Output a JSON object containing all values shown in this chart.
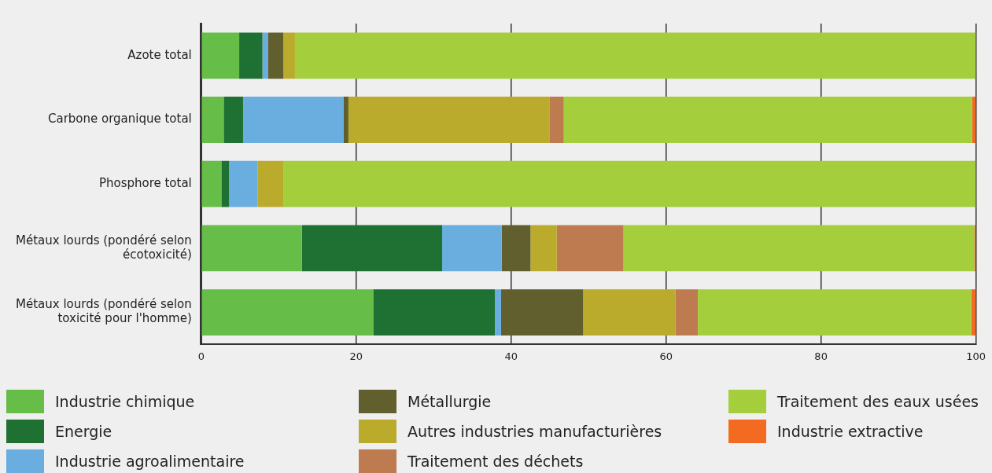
{
  "chart_data": {
    "type": "bar",
    "orientation": "horizontal",
    "stacked": true,
    "categories": [
      "Azote total",
      "Carbone organique total",
      "Phosphore total",
      "Métaux lourds (pondéré selon écotoxicité)",
      "Métaux lourds (pondéré selon toxicité pour l'homme)"
    ],
    "series": [
      {
        "name": "Industrie chimique",
        "color": "#66bd47",
        "values": [
          4.9,
          2.9,
          2.6,
          13.0,
          22.2
        ]
      },
      {
        "name": "Energie",
        "color": "#1e7132",
        "values": [
          3.0,
          2.5,
          1.0,
          18.1,
          15.7
        ]
      },
      {
        "name": "Industrie agroalimentaire",
        "color": "#6aaedf",
        "values": [
          0.7,
          13.0,
          3.7,
          7.7,
          0.8
        ]
      },
      {
        "name": "Métallurgie",
        "color": "#625f2f",
        "values": [
          2.0,
          0.6,
          0,
          3.7,
          10.6
        ]
      },
      {
        "name": "Autres industries manufacturières",
        "color": "#bbab2c",
        "values": [
          1.5,
          26.0,
          3.3,
          3.4,
          11.9
        ]
      },
      {
        "name": "Traitement des déchets",
        "color": "#bf7b50",
        "values": [
          0,
          1.8,
          0,
          8.6,
          2.9
        ]
      },
      {
        "name": "Traitement des eaux usées",
        "color": "#a4ce3b",
        "values": [
          87.9,
          52.7,
          89.4,
          45.3,
          35.3
        ]
      },
      {
        "name": "Industrie extractive",
        "color": "#f26b21",
        "values": [
          0,
          0.5,
          0,
          0.2,
          0.6
        ]
      }
    ],
    "xlim": [
      0,
      100
    ],
    "xticks": [
      0,
      20,
      40,
      60,
      80,
      100
    ],
    "grid": "x",
    "legend": "bottom"
  }
}
